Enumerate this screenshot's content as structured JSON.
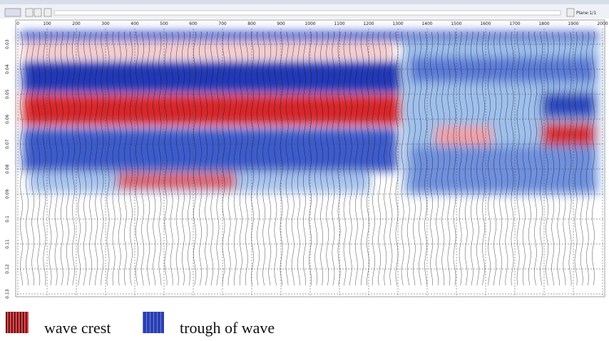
{
  "toolbar": {
    "plane_label": "Plane:1/1"
  },
  "axes": {
    "x_labels": [
      "0",
      "100",
      "200",
      "300",
      "400",
      "500",
      "600",
      "700",
      "800",
      "900",
      "1000",
      "1100",
      "1200",
      "1300",
      "1400",
      "1500",
      "1600",
      "1700",
      "1800",
      "1900",
      "2000"
    ],
    "y_labels": [
      "0.03",
      "0.04",
      "0.05",
      "0.06",
      "0.07",
      "0.08",
      "0.09",
      "0.1",
      "0.11",
      "0.12",
      "0.13"
    ]
  },
  "legend": [
    {
      "label": "wave crest"
    },
    {
      "label": "trough of wave"
    }
  ]
}
